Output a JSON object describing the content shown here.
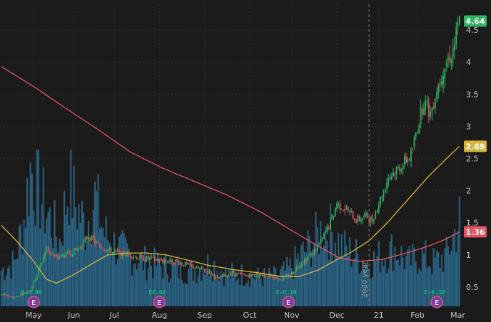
{
  "chart_data": {
    "type": "candlestick",
    "colors": {
      "background": "#1b1b1b",
      "up": "#2fb563",
      "down": "#e05561",
      "volume": "#2e6f96",
      "ma_slow": "#e05561",
      "ma_fast": "#d6b43a",
      "price_badge": "#2fb563",
      "slow_badge": "#e05561",
      "fast_badge": "#d6b43a"
    },
    "x_labels": [
      "May",
      "Jun",
      "Jul",
      "Aug",
      "Sep",
      "Oct",
      "Nov",
      "Dec",
      "21",
      "Feb",
      "Mar"
    ],
    "x_label_day_index": [
      20,
      45,
      70,
      98,
      126,
      154,
      180,
      208,
      234,
      258,
      283
    ],
    "y_ticks": [
      "0.5",
      "1",
      "1.5",
      "2",
      "2.5",
      "3",
      "3.5",
      "4",
      "4.5"
    ],
    "y_tick_values": [
      0.5,
      1,
      1.5,
      2,
      2.5,
      3,
      3.5,
      4,
      4.5
    ],
    "ylim": [
      0.2,
      4.9
    ],
    "price_badges": [
      {
        "label": "4.64",
        "value": 4.64,
        "kind": "price"
      },
      {
        "label": "2.69",
        "value": 2.69,
        "kind": "fast"
      },
      {
        "label": "1.36",
        "value": 1.36,
        "kind": "slow"
      }
    ],
    "year_marker": {
      "label": "2020 year",
      "day_index": 228
    },
    "earnings": [
      {
        "label": "E",
        "value_label": "E-3.99",
        "day_index": 20
      },
      {
        "label": "E",
        "value_label": "E0.02",
        "day_index": 98
      },
      {
        "label": "E",
        "value_label": "E-0.19",
        "day_index": 178
      },
      {
        "label": "E",
        "value_label": "E-0.32",
        "day_index": 270
      }
    ],
    "price_anchors": [
      [
        0,
        0.38
      ],
      [
        8,
        0.34
      ],
      [
        18,
        0.45
      ],
      [
        22,
        0.7
      ],
      [
        28,
        1.1
      ],
      [
        34,
        0.95
      ],
      [
        40,
        1.0
      ],
      [
        48,
        1.1
      ],
      [
        54,
        1.3
      ],
      [
        60,
        1.15
      ],
      [
        68,
        1.05
      ],
      [
        78,
        1.0
      ],
      [
        88,
        0.95
      ],
      [
        98,
        0.92
      ],
      [
        108,
        0.9
      ],
      [
        118,
        0.82
      ],
      [
        128,
        0.75
      ],
      [
        134,
        0.62
      ],
      [
        142,
        0.72
      ],
      [
        150,
        0.68
      ],
      [
        158,
        0.7
      ],
      [
        166,
        0.68
      ],
      [
        174,
        0.62
      ],
      [
        180,
        0.72
      ],
      [
        186,
        0.88
      ],
      [
        192,
        1.0
      ],
      [
        198,
        1.2
      ],
      [
        204,
        1.5
      ],
      [
        208,
        1.8
      ],
      [
        214,
        1.7
      ],
      [
        220,
        1.55
      ],
      [
        226,
        1.6
      ],
      [
        230,
        1.55
      ],
      [
        234,
        1.8
      ],
      [
        240,
        2.2
      ],
      [
        248,
        2.4
      ],
      [
        254,
        2.55
      ],
      [
        258,
        3.0
      ],
      [
        262,
        3.4
      ],
      [
        266,
        3.2
      ],
      [
        270,
        3.6
      ],
      [
        274,
        3.9
      ],
      [
        280,
        4.2
      ],
      [
        284,
        4.64
      ]
    ],
    "volume_anchors": [
      [
        0,
        0.25
      ],
      [
        8,
        0.3
      ],
      [
        14,
        0.6
      ],
      [
        18,
        0.95
      ],
      [
        22,
        0.85
      ],
      [
        26,
        0.7
      ],
      [
        30,
        0.6
      ],
      [
        36,
        0.45
      ],
      [
        42,
        0.85
      ],
      [
        46,
        0.7
      ],
      [
        52,
        0.55
      ],
      [
        58,
        0.75
      ],
      [
        64,
        0.5
      ],
      [
        72,
        0.4
      ],
      [
        80,
        0.35
      ],
      [
        90,
        0.3
      ],
      [
        100,
        0.28
      ],
      [
        110,
        0.25
      ],
      [
        120,
        0.25
      ],
      [
        130,
        0.3
      ],
      [
        140,
        0.22
      ],
      [
        150,
        0.22
      ],
      [
        160,
        0.2
      ],
      [
        170,
        0.2
      ],
      [
        178,
        0.25
      ],
      [
        186,
        0.35
      ],
      [
        194,
        0.45
      ],
      [
        200,
        0.55
      ],
      [
        206,
        0.5
      ],
      [
        212,
        0.4
      ],
      [
        220,
        0.35
      ],
      [
        228,
        0.3
      ],
      [
        236,
        0.35
      ],
      [
        244,
        0.4
      ],
      [
        252,
        0.3
      ],
      [
        260,
        0.35
      ],
      [
        268,
        0.3
      ],
      [
        276,
        0.35
      ],
      [
        284,
        0.6
      ]
    ],
    "ma_fast_anchors": [
      [
        0,
        1.46
      ],
      [
        10,
        1.2
      ],
      [
        20,
        0.9
      ],
      [
        28,
        0.62
      ],
      [
        34,
        0.56
      ],
      [
        44,
        0.68
      ],
      [
        56,
        0.86
      ],
      [
        66,
        1.0
      ],
      [
        78,
        1.03
      ],
      [
        90,
        1.03
      ],
      [
        102,
        1.0
      ],
      [
        114,
        0.93
      ],
      [
        128,
        0.84
      ],
      [
        144,
        0.77
      ],
      [
        160,
        0.72
      ],
      [
        172,
        0.67
      ],
      [
        184,
        0.66
      ],
      [
        196,
        0.76
      ],
      [
        206,
        0.9
      ],
      [
        216,
        1.03
      ],
      [
        228,
        1.22
      ],
      [
        240,
        1.52
      ],
      [
        252,
        1.86
      ],
      [
        264,
        2.2
      ],
      [
        276,
        2.5
      ],
      [
        284,
        2.69
      ]
    ],
    "ma_slow_anchors": [
      [
        0,
        3.93
      ],
      [
        20,
        3.62
      ],
      [
        40,
        3.28
      ],
      [
        60,
        2.95
      ],
      [
        80,
        2.6
      ],
      [
        100,
        2.35
      ],
      [
        120,
        2.14
      ],
      [
        140,
        1.93
      ],
      [
        160,
        1.68
      ],
      [
        180,
        1.38
      ],
      [
        196,
        1.14
      ],
      [
        210,
        0.95
      ],
      [
        222,
        0.9
      ],
      [
        236,
        0.93
      ],
      [
        250,
        1.02
      ],
      [
        264,
        1.13
      ],
      [
        276,
        1.25
      ],
      [
        284,
        1.36
      ]
    ]
  }
}
